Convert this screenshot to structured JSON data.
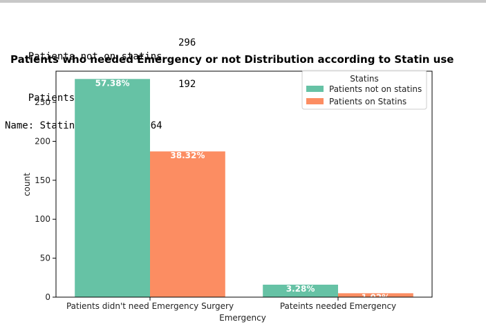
{
  "console": {
    "lines": [
      {
        "label": "Patients not on statins",
        "value": "296"
      },
      {
        "label": "Patients on Statins",
        "value": "192"
      }
    ],
    "footer": "Name: Statins, dtype: int64"
  },
  "chart_data": {
    "type": "bar",
    "title": "Patients who needed Emergency or not Distribution according to Statin use",
    "xlabel": "Emergency",
    "ylabel": "count",
    "categories": [
      "Patients didn't need Emergency Surgery",
      "Pateints needed Emergency"
    ],
    "series": [
      {
        "name": "Patients not on statins",
        "values": [
          280,
          16
        ],
        "labels": [
          "57.38%",
          "3.28%"
        ],
        "color": "#66c2a5"
      },
      {
        "name": "Patients on Statins",
        "values": [
          187,
          5
        ],
        "labels": [
          "38.32%",
          "1.02%"
        ],
        "color": "#fc8d62"
      }
    ],
    "ylim": [
      0,
      290
    ],
    "yticks": [
      0,
      50,
      100,
      150,
      200,
      250
    ],
    "legend": {
      "title": "Statins",
      "placement": "top-right"
    },
    "grid": false
  }
}
